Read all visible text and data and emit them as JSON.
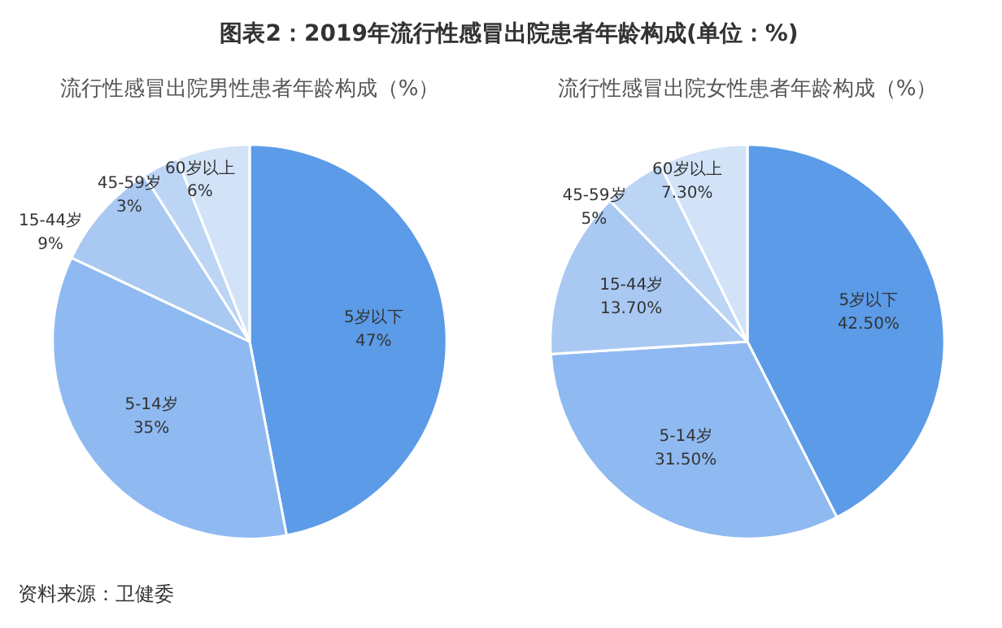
{
  "chart_data": [
    {
      "type": "pie",
      "title": "图表2：2019年流行性感冒出院患者年龄构成(单位：%)",
      "subtitle": "流行性感冒出院男性患者年龄构成（%）",
      "categories": [
        "5岁以下",
        "5-14岁",
        "15-44岁",
        "45-59岁",
        "60岁以上"
      ],
      "values": [
        47,
        35,
        9,
        3,
        6
      ],
      "colors": [
        "#5b9be8",
        "#8fb9f1",
        "#a9c9f3",
        "#bdd5f5",
        "#d2e3f8"
      ],
      "value_labels": [
        "47%",
        "35%",
        "9%",
        "3%",
        "6%"
      ],
      "legend": false,
      "annotations": [
        "资料来源：卫健委"
      ]
    },
    {
      "type": "pie",
      "subtitle": "流行性感冒出院女性患者年龄构成（%）",
      "categories": [
        "5岁以下",
        "5-14岁",
        "15-44岁",
        "45-59岁",
        "60岁以上"
      ],
      "values": [
        42.5,
        31.5,
        13.7,
        5,
        7.3
      ],
      "colors": [
        "#5b9be8",
        "#8fb9f1",
        "#a9c9f3",
        "#bdd5f5",
        "#d2e3f8"
      ],
      "value_labels": [
        "42.50%",
        "31.50%",
        "13.70%",
        "5%",
        "7.30%"
      ],
      "legend": false
    }
  ]
}
